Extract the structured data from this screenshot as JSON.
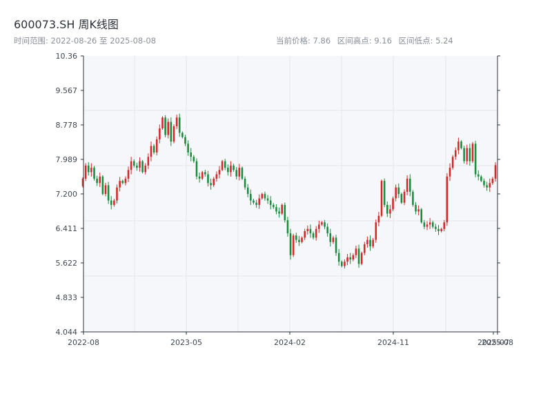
{
  "header": {
    "title": "600073.SH 周K线图",
    "range_label": "时间范围:",
    "range_start": "2022-08-26",
    "range_sep": "至",
    "range_end": "2025-08-08",
    "current_label": "当前价格:",
    "current_value": "7.86",
    "high_label": "区间高点:",
    "high_value": "9.16",
    "low_label": "区间低点:",
    "low_value": "5.24"
  },
  "colors": {
    "up": "#d62728",
    "down": "#1a8a3c",
    "plot_bg": "#f6f7fa",
    "grid": "#e3e6eb",
    "axis": "#2b2f36"
  },
  "chart_data": {
    "type": "candlestick",
    "title": "",
    "xlabel": "",
    "ylabel": "",
    "ylim": [
      4.044,
      10.36
    ],
    "yticks": [
      "10.36",
      "9.567",
      "8.778",
      "7.989",
      "7.200",
      "6.411",
      "5.622",
      "4.833",
      "4.044"
    ],
    "xticks": [
      "2022-08",
      "2023-05",
      "2024-02",
      "2024-11",
      "2025-07",
      "2025-08"
    ],
    "grid": true,
    "series": [
      {
        "name": "",
        "frequency": "weekly",
        "closes": [
          7.55,
          7.85,
          7.7,
          7.8,
          7.55,
          7.45,
          7.6,
          7.2,
          7.4,
          7.05,
          6.95,
          7.05,
          7.35,
          7.5,
          7.45,
          7.55,
          7.75,
          7.95,
          7.85,
          7.8,
          7.95,
          7.7,
          7.85,
          8.05,
          8.3,
          8.15,
          8.45,
          8.7,
          8.95,
          8.55,
          8.85,
          8.4,
          8.75,
          8.95,
          8.6,
          8.5,
          8.35,
          8.15,
          8.05,
          7.95,
          7.6,
          7.55,
          7.7,
          7.65,
          7.45,
          7.4,
          7.55,
          7.65,
          7.75,
          7.95,
          7.8,
          7.7,
          7.85,
          7.75,
          7.6,
          7.8,
          7.55,
          7.35,
          7.2,
          7.05,
          7.0,
          6.95,
          7.1,
          7.2,
          7.1,
          7.05,
          6.95,
          6.9,
          6.8,
          6.75,
          6.95,
          6.6,
          6.3,
          5.8,
          6.25,
          6.15,
          6.1,
          6.2,
          6.35,
          6.4,
          6.3,
          6.2,
          6.4,
          6.5,
          6.55,
          6.45,
          6.3,
          6.1,
          6.2,
          5.85,
          5.65,
          5.55,
          5.65,
          5.75,
          5.7,
          5.8,
          5.95,
          5.6,
          5.85,
          6.05,
          6.15,
          6.0,
          6.15,
          6.55,
          6.7,
          7.5,
          6.95,
          6.75,
          6.85,
          7.1,
          7.35,
          7.2,
          7.0,
          7.25,
          7.55,
          7.25,
          6.95,
          6.8,
          6.85,
          6.55,
          6.45,
          6.5,
          6.55,
          6.45,
          6.4,
          6.35,
          6.4,
          6.55,
          7.6,
          7.8,
          8.05,
          8.2,
          8.4,
          8.25,
          7.95,
          8.25,
          7.95,
          8.35,
          7.65,
          7.6,
          7.5,
          7.4,
          7.35,
          7.45,
          7.55,
          7.86
        ]
      }
    ]
  }
}
